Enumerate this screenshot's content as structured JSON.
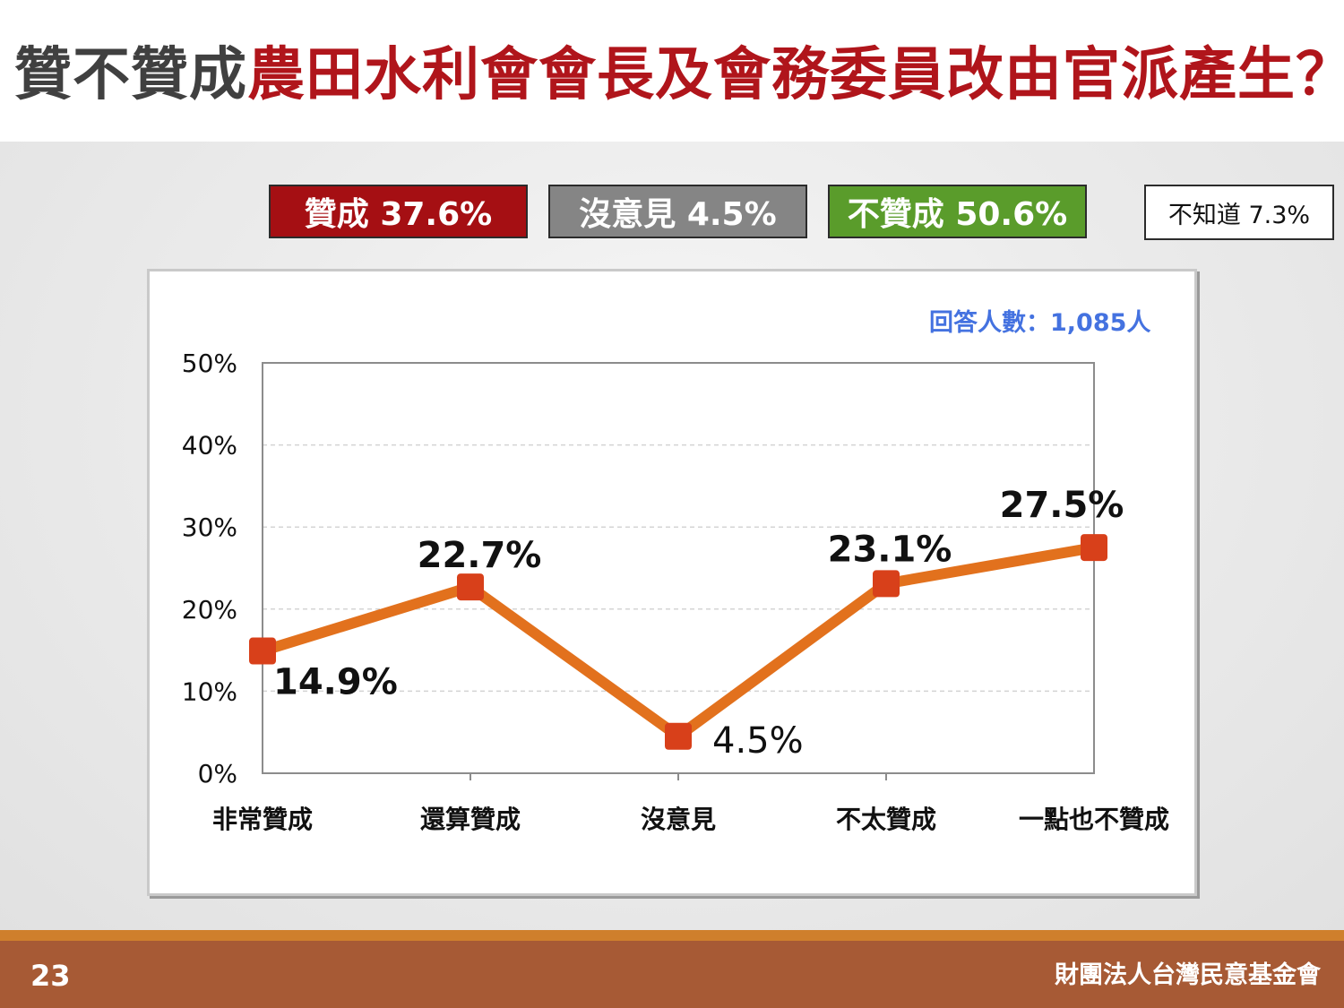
{
  "title": {
    "prefix": "贊不贊成",
    "highlight": "農田水利會會長及會務委員改由官派產生？"
  },
  "legend": {
    "approve": "贊成 37.6%",
    "neutral": "沒意見 4.5%",
    "disapprove": "不贊成 50.6%",
    "unknown": "不知道 7.3%"
  },
  "respondents": "回答人數：1,085人",
  "footer": {
    "page_number": "23",
    "organization": "財團法人台灣民意基金會"
  },
  "colors": {
    "highlight": "#b0151b",
    "line": "#e2711d",
    "marker": "#d8401a",
    "approve": "#a50f13",
    "neutral": "#858585",
    "disapprove": "#5a9c2b"
  },
  "chart_data": {
    "type": "line",
    "categories": [
      "非常贊成",
      "還算贊成",
      "沒意見",
      "不太贊成",
      "一點也不贊成"
    ],
    "values": [
      14.9,
      22.7,
      4.5,
      23.1,
      27.5
    ],
    "value_labels": [
      "14.9%",
      "22.7%",
      "4.5%",
      "23.1%",
      "27.5%"
    ],
    "ylim": [
      0,
      50
    ],
    "yticks": [
      0,
      10,
      20,
      30,
      40,
      50
    ],
    "ytick_labels": [
      "0%",
      "10%",
      "20%",
      "30%",
      "40%",
      "50%"
    ],
    "grid": true,
    "title": "",
    "xlabel": "",
    "ylabel": ""
  }
}
